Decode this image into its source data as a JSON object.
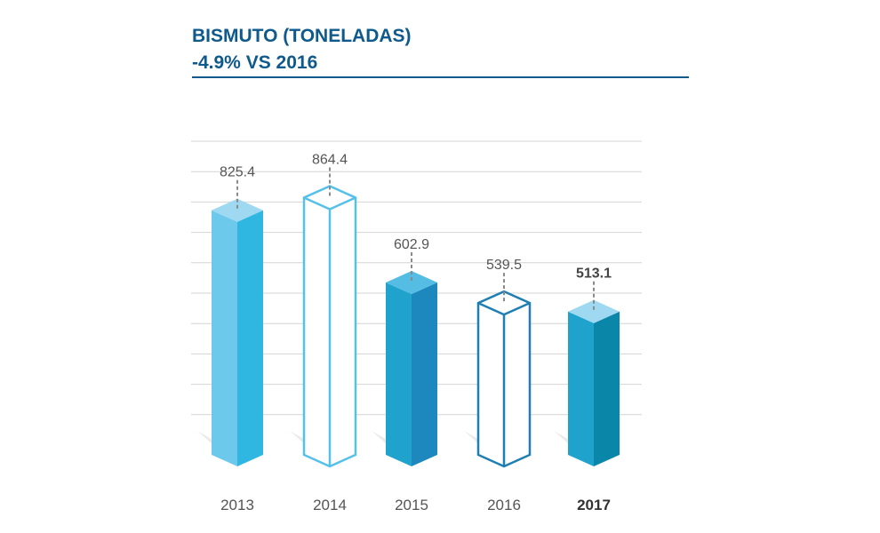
{
  "header": {
    "title": "BISMUTO (TONELADAS)",
    "subtitle": "-4.9% VS 2016"
  },
  "colors": {
    "title": "#0f5a8c",
    "grid": "#d4d4d4",
    "light_left": "#6cc9ec",
    "light_right": "#2fb6e1",
    "light_top": "#9ed8f1",
    "outline_light": "#55c1ea",
    "dark_left": "#1fa3cd",
    "dark_right": "#1c88bd",
    "dark_top": "#55bde3",
    "outline_dark": "#1f7fb2",
    "darkest_right": "#0a86a9"
  },
  "chart_data": {
    "type": "bar",
    "title": "BISMUTO (TONELADAS)",
    "subtitle": "-4.9% VS 2016",
    "categories": [
      "2013",
      "2014",
      "2015",
      "2016",
      "2017"
    ],
    "values": [
      825.4,
      864.4,
      602.9,
      539.5,
      513.1
    ],
    "value_labels": [
      "825.4",
      "864.4",
      "602.9",
      "539.5",
      "513.1"
    ],
    "highlight": "2017",
    "bar_styles": [
      "solid-light",
      "outline-light",
      "solid-dark",
      "outline-dark",
      "solid-darkest"
    ],
    "ylim": [
      0,
      1000
    ],
    "grid": true,
    "legend": "none"
  }
}
